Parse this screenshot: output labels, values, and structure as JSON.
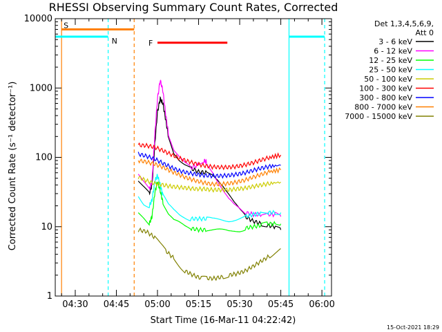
{
  "chart_data": {
    "type": "line",
    "title": "RHESSI Observing Summary Count Rates, Corrected",
    "xlabel": "Start Time (16-Mar-11 04:22:42)",
    "ylabel": "Corrected Count Rate (s⁻¹ detector⁻¹)",
    "y_scale": "log",
    "ylim": [
      1,
      10000
    ],
    "xlim_minutes": [
      22.7,
      123.5
    ],
    "x_ticks": [
      {
        "label": "04:30",
        "minutes": 30
      },
      {
        "label": "04:45",
        "minutes": 45
      },
      {
        "label": "05:00",
        "minutes": 60
      },
      {
        "label": "05:15",
        "minutes": 75
      },
      {
        "label": "05:30",
        "minutes": 90
      },
      {
        "label": "05:45",
        "minutes": 105
      },
      {
        "label": "06:00",
        "minutes": 120
      }
    ],
    "y_ticks": [
      {
        "label": "1",
        "value": 1
      },
      {
        "label": "10",
        "value": 10
      },
      {
        "label": "100",
        "value": 100
      },
      {
        "label": "1000",
        "value": 1000
      },
      {
        "label": "10000",
        "value": 10000
      }
    ],
    "legend_header": [
      "Det 1,3,4,5,6,9,",
      "Att 0"
    ],
    "legend_placement": "right",
    "series": [
      {
        "name": "3 - 6 keV",
        "color": "#000000",
        "x": [
          53,
          55,
          57,
          58,
          59,
          60,
          61,
          62,
          63,
          64,
          66,
          68,
          70,
          72,
          75,
          78,
          80,
          82,
          84,
          86,
          88,
          90,
          92,
          95,
          98,
          100,
          103,
          105
        ],
        "y": [
          48,
          38,
          30,
          40,
          150,
          450,
          700,
          600,
          350,
          200,
          120,
          95,
          80,
          70,
          62,
          60,
          58,
          50,
          40,
          30,
          22,
          17,
          14,
          12,
          11,
          10.5,
          10,
          9
        ]
      },
      {
        "name": "6 - 12 keV",
        "color": "#ff00ff",
        "x": [
          53,
          55,
          57,
          58,
          59,
          60,
          61,
          62,
          63,
          64,
          66,
          68,
          70,
          72,
          75,
          77,
          78,
          80,
          82,
          84,
          86,
          88,
          90,
          92,
          95,
          98,
          100,
          103,
          105
        ],
        "y": [
          55,
          42,
          34,
          45,
          200,
          700,
          1300,
          900,
          420,
          220,
          130,
          100,
          80,
          70,
          78,
          90,
          85,
          65,
          45,
          32,
          24,
          20,
          18,
          16,
          15,
          15,
          15,
          15,
          14
        ]
      },
      {
        "name": "12 - 25 keV",
        "color": "#00ff00",
        "x": [
          53,
          55,
          57,
          58,
          59,
          60,
          61,
          62,
          64,
          66,
          68,
          70,
          72,
          75,
          78,
          80,
          82,
          84,
          86,
          88,
          90,
          92,
          95,
          98,
          100,
          103,
          105
        ],
        "y": [
          15,
          13,
          11,
          14,
          30,
          45,
          33,
          22,
          15,
          12,
          11,
          10,
          9.5,
          9,
          9,
          8.8,
          8.7,
          8.6,
          8.5,
          8.8,
          9,
          9.5,
          10,
          10.5,
          11,
          11,
          11
        ]
      },
      {
        "name": "25 - 50 keV",
        "color": "#00ffff",
        "x": [
          53,
          55,
          57,
          58,
          59,
          60,
          61,
          62,
          64,
          66,
          68,
          70,
          72,
          75,
          78,
          80,
          82,
          84,
          86,
          88,
          90,
          92,
          95,
          98,
          100,
          103,
          105
        ],
        "y": [
          28,
          22,
          20,
          24,
          45,
          55,
          40,
          28,
          20,
          17,
          15,
          14,
          13,
          13,
          13,
          12.5,
          12.5,
          12.5,
          12.5,
          13,
          13.5,
          14,
          15,
          15.5,
          16,
          16,
          16
        ]
      },
      {
        "name": "50 - 100 keV",
        "color": "#cccc00",
        "x": [
          53,
          56,
          59,
          62,
          65,
          68,
          71,
          74,
          77,
          80,
          83,
          86,
          89,
          92,
          95,
          98,
          101,
          105
        ],
        "y": [
          52,
          46,
          42,
          40,
          38,
          37,
          36,
          35,
          35,
          34,
          34,
          34,
          35,
          36,
          38,
          40,
          42,
          44
        ]
      },
      {
        "name": "100 - 300 keV",
        "color": "#ff0000",
        "x": [
          53,
          56,
          59,
          62,
          65,
          68,
          71,
          74,
          77,
          80,
          83,
          86,
          89,
          92,
          95,
          98,
          101,
          105
        ],
        "y": [
          150,
          148,
          140,
          125,
          110,
          97,
          88,
          81,
          76,
          73,
          72,
          72,
          74,
          78,
          84,
          92,
          100,
          108
        ]
      },
      {
        "name": "300 - 800 keV",
        "color": "#0000ff",
        "x": [
          53,
          56,
          59,
          62,
          65,
          68,
          71,
          74,
          77,
          80,
          83,
          86,
          89,
          92,
          95,
          98,
          101,
          105
        ],
        "y": [
          112,
          104,
          95,
          82,
          72,
          64,
          60,
          57,
          55,
          54,
          54,
          55,
          57,
          60,
          65,
          70,
          74,
          77
        ]
      },
      {
        "name": "800 - 7000 keV",
        "color": "#ff8000",
        "x": [
          53,
          56,
          59,
          62,
          65,
          68,
          71,
          74,
          77,
          80,
          83,
          86,
          89,
          92,
          95,
          98,
          101,
          105
        ],
        "y": [
          90,
          86,
          80,
          72,
          63,
          56,
          50,
          46,
          43,
          41,
          41,
          42,
          44,
          47,
          52,
          57,
          62,
          66
        ]
      },
      {
        "name": "7000 - 15000 keV",
        "color": "#808000",
        "x": [
          53,
          56,
          59,
          61,
          63,
          66,
          68,
          70,
          73,
          76,
          78,
          81,
          84,
          86,
          89,
          92,
          95,
          98,
          101,
          103,
          105
        ],
        "y": [
          9,
          8.5,
          7,
          5.5,
          4.5,
          3.5,
          2.8,
          2.3,
          2,
          1.8,
          1.8,
          1.8,
          1.9,
          2,
          2.1,
          2.3,
          2.7,
          3.2,
          3.8,
          4.3,
          4.8
        ]
      }
    ],
    "segments": [
      {
        "label": "S",
        "color": "#ff8000",
        "start": 25,
        "end": 51.5,
        "value": 7000
      },
      {
        "label": "N",
        "color": "#00ffff",
        "start": 22.7,
        "end": 42,
        "value": 5500
      },
      {
        "label": "F",
        "color": "#ff0000",
        "start": 60,
        "end": 85.5,
        "value": 4500
      },
      {
        "label": "",
        "color": "#00ffff",
        "start": 108,
        "end": 121,
        "value": 5500
      }
    ],
    "vlines": [
      {
        "minutes": 25,
        "color": "#ff8000",
        "style": "solid"
      },
      {
        "minutes": 42,
        "color": "#00ffff",
        "style": "dashed"
      },
      {
        "minutes": 51.5,
        "color": "#ff8000",
        "style": "dashed"
      },
      {
        "minutes": 108,
        "color": "#00ffff",
        "style": "solid"
      },
      {
        "minutes": 121,
        "color": "#00ffff",
        "style": "dashed"
      }
    ],
    "timestamp": "15-Oct-2021 18:29"
  }
}
